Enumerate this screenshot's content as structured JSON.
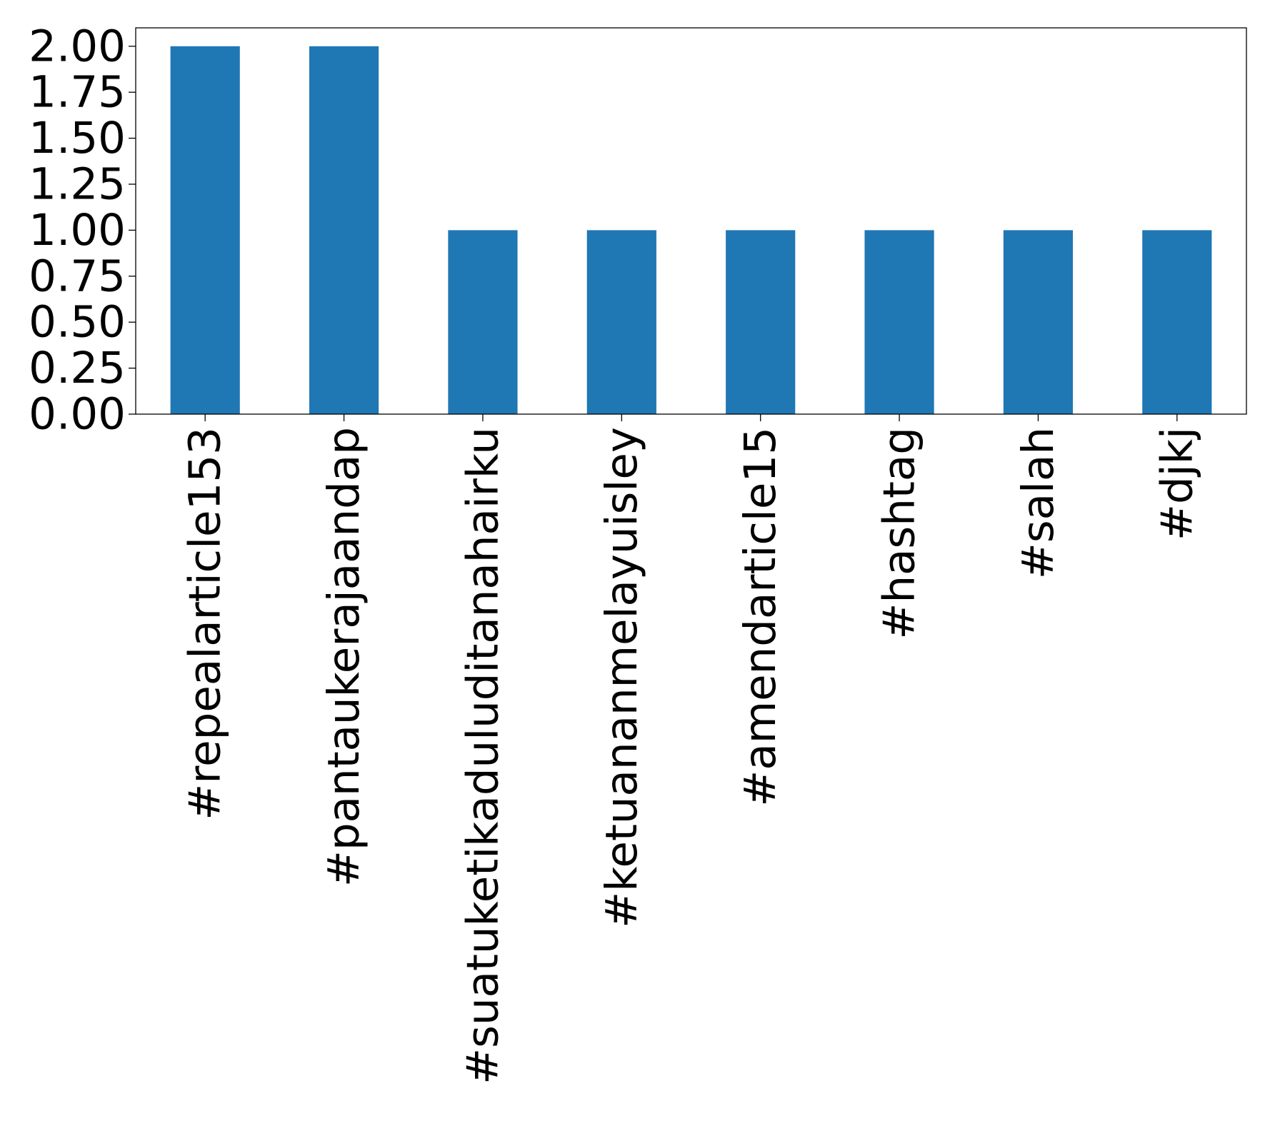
{
  "chart_data": {
    "type": "bar",
    "title": "",
    "xlabel": "",
    "ylabel": "",
    "categories": [
      "#repealarticle153",
      "#pantaukerajaandap",
      "#suatuketikaduluditanahairku",
      "#ketuananmelayuisley",
      "#amendarticle15",
      "#hashtag",
      "#salah",
      "#djkj"
    ],
    "values": [
      2,
      2,
      1,
      1,
      1,
      1,
      1,
      1
    ],
    "ylim": [
      0,
      2.1
    ],
    "yticks": [
      "0.00",
      "0.25",
      "0.50",
      "0.75",
      "1.00",
      "1.25",
      "1.50",
      "1.75",
      "2.00"
    ],
    "bar_color": "#1f77b4",
    "grid": false,
    "legend": "none"
  }
}
